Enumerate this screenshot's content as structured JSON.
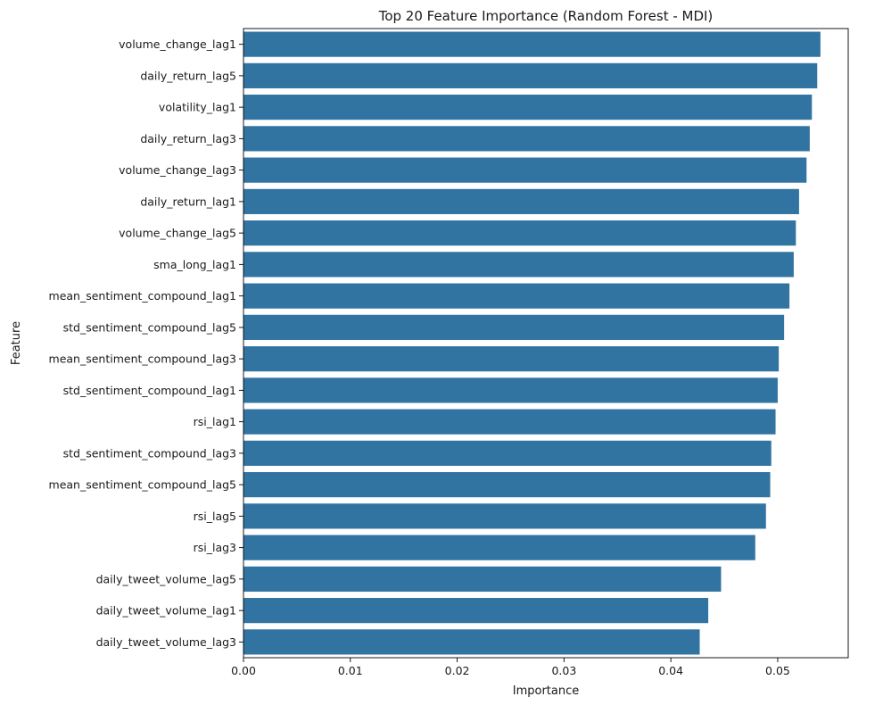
{
  "chart_data": {
    "type": "bar",
    "orientation": "horizontal",
    "title": "Top 20 Feature Importance (Random Forest - MDI)",
    "xlabel": "Importance",
    "ylabel": "Feature",
    "xlim": [
      0,
      0.0566
    ],
    "x_ticks": [
      "0.00",
      "0.01",
      "0.02",
      "0.03",
      "0.04",
      "0.05"
    ],
    "grid": false,
    "bar_color": "#3274a1",
    "categories": [
      "volume_change_lag1",
      "daily_return_lag5",
      "volatility_lag1",
      "daily_return_lag3",
      "volume_change_lag3",
      "daily_return_lag1",
      "volume_change_lag5",
      "sma_long_lag1",
      "mean_sentiment_compound_lag1",
      "std_sentiment_compound_lag5",
      "mean_sentiment_compound_lag3",
      "std_sentiment_compound_lag1",
      "rsi_lag1",
      "std_sentiment_compound_lag3",
      "mean_sentiment_compound_lag5",
      "rsi_lag5",
      "rsi_lag3",
      "daily_tweet_volume_lag5",
      "daily_tweet_volume_lag1",
      "daily_tweet_volume_lag3"
    ],
    "values": [
      0.054,
      0.0537,
      0.0532,
      0.053,
      0.0527,
      0.052,
      0.0517,
      0.0515,
      0.0511,
      0.0506,
      0.0501,
      0.05,
      0.0498,
      0.0494,
      0.0493,
      0.0489,
      0.0479,
      0.0447,
      0.0435,
      0.0427
    ]
  }
}
